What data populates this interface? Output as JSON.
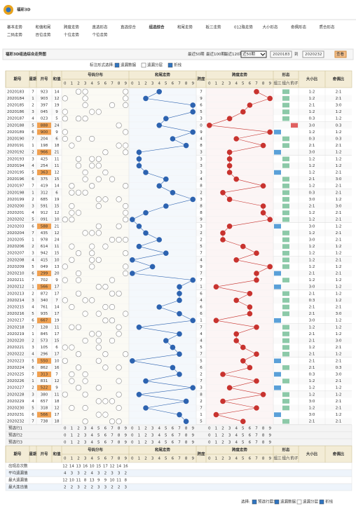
{
  "header": {
    "logo": "福彩3D",
    "nav": [
      [
        "基本走势",
        "和值和尾",
        "跨度走势",
        "直选形态",
        "直选综合",
        "组选综合",
        "和尾走势",
        "板三走势",
        "012路走势",
        "大小形态",
        "奇偶形态",
        "质合形态"
      ],
      [
        "二码走势",
        "百位走势",
        "十位走势",
        "个位走势"
      ]
    ],
    "active_nav": "组选综合"
  },
  "title_bar": {
    "title": "福彩3D组选综合走势图",
    "period_links": [
      "最近50期",
      "最近100期",
      "最近120期"
    ],
    "select": "近50期",
    "from": "2020183",
    "to_label": "到",
    "to": "2020232",
    "button": "查看"
  },
  "controls": {
    "label": "标注形式选择:",
    "options": [
      {
        "label": "遗漏数据",
        "checked": true
      },
      {
        "label": "遗漏分层",
        "checked": false
      },
      {
        "label": "折线",
        "checked": true
      }
    ]
  },
  "table": {
    "headers": {
      "issue": "期号",
      "week": "星期",
      "number": "开号",
      "sum": "和值",
      "dist": "号码分布",
      "tail": "和尾走势",
      "span": "跨度",
      "trend": "跨度走势",
      "shape": "形态",
      "big_small": "大小比",
      "odd_even": "奇偶比"
    },
    "digits": [
      "0",
      "1",
      "2",
      "3",
      "4",
      "5",
      "6",
      "7",
      "8",
      "9"
    ],
    "shape_labels": [
      "组三",
      "组六",
      "豹子"
    ],
    "rows": [
      {
        "issue": "2020183",
        "week": 7,
        "number": "923",
        "sum": 14,
        "span": 7,
        "big_small": "1:2",
        "odd_even": "2:1"
      },
      {
        "issue": "2020184",
        "week": 1,
        "number": "903",
        "sum": 12,
        "span": 9,
        "big_small": "1:2",
        "odd_even": "2:1"
      },
      {
        "issue": "2020185",
        "week": 2,
        "number": "397",
        "sum": 19,
        "span": 6,
        "big_small": "2:1",
        "odd_even": "3:0"
      },
      {
        "issue": "2020186",
        "week": 3,
        "number": "045",
        "sum": 9,
        "span": 5,
        "big_small": "1:2",
        "odd_even": "1:2"
      },
      {
        "issue": "2020187",
        "week": 4,
        "number": "023",
        "sum": 5,
        "span": 3,
        "big_small": "0:3",
        "odd_even": "1:2"
      },
      {
        "issue": "2020188",
        "week": 5,
        "number": "888",
        "sum": 24,
        "span": 0,
        "big_small": "3:0",
        "odd_even": "0:3"
      },
      {
        "issue": "2020189",
        "week": 6,
        "number": "900",
        "sum": 9,
        "span": 9,
        "big_small": "1:2",
        "odd_even": "1:2"
      },
      {
        "issue": "2020190",
        "week": 7,
        "number": "204",
        "sum": 6,
        "span": 4,
        "big_small": "0:3",
        "odd_even": "0:3"
      },
      {
        "issue": "2020191",
        "week": 1,
        "number": "198",
        "sum": 18,
        "span": 8,
        "big_small": "2:1",
        "odd_even": "2:1"
      },
      {
        "issue": "2020192",
        "week": 2,
        "number": "966",
        "sum": 21,
        "span": 3,
        "big_small": "3:0",
        "odd_even": "1:2"
      },
      {
        "issue": "2020193",
        "week": 3,
        "number": "425",
        "sum": 11,
        "span": 3,
        "big_small": "1:2",
        "odd_even": "1:2"
      },
      {
        "issue": "2020194",
        "week": 4,
        "number": "254",
        "sum": 11,
        "span": 3,
        "big_small": "1:2",
        "odd_even": "1:2"
      },
      {
        "issue": "2020195",
        "week": 5,
        "number": "363",
        "sum": 12,
        "span": 3,
        "big_small": "1:2",
        "odd_even": "2:1"
      },
      {
        "issue": "2020196",
        "week": 6,
        "number": "375",
        "sum": 15,
        "span": 4,
        "big_small": "2:1",
        "odd_even": "3:0"
      },
      {
        "issue": "2020197",
        "week": 7,
        "number": "419",
        "sum": 14,
        "span": 8,
        "big_small": "1:2",
        "odd_even": "2:1"
      },
      {
        "issue": "2020198",
        "week": 1,
        "number": "312",
        "sum": 6,
        "span": 2,
        "big_small": "0:3",
        "odd_even": "2:1"
      },
      {
        "issue": "2020199",
        "week": 2,
        "number": "685",
        "sum": 19,
        "span": 3,
        "big_small": "3:0",
        "odd_even": "1:2"
      },
      {
        "issue": "2020200",
        "week": 3,
        "number": "591",
        "sum": 15,
        "span": 8,
        "big_small": "2:1",
        "odd_even": "3:0"
      },
      {
        "issue": "2020201",
        "week": 4,
        "number": "912",
        "sum": 12,
        "span": 8,
        "big_small": "1:2",
        "odd_even": "2:1"
      },
      {
        "issue": "2020202",
        "week": 5,
        "number": "091",
        "sum": 10,
        "span": 9,
        "big_small": "1:2",
        "odd_even": "2:1"
      },
      {
        "issue": "2020203",
        "week": 6,
        "number": "588",
        "sum": 21,
        "span": 3,
        "big_small": "3:0",
        "odd_even": "1:2"
      },
      {
        "issue": "2020204",
        "week": 7,
        "number": "435",
        "sum": 12,
        "span": 2,
        "big_small": "1:2",
        "odd_even": "2:1"
      },
      {
        "issue": "2020205",
        "week": 1,
        "number": "978",
        "sum": 24,
        "span": 2,
        "big_small": "3:0",
        "odd_even": "2:1"
      },
      {
        "issue": "2020206",
        "week": 2,
        "number": "614",
        "sum": 11,
        "span": 5,
        "big_small": "1:2",
        "odd_even": "1:2"
      },
      {
        "issue": "2020207",
        "week": 3,
        "number": "942",
        "sum": 15,
        "span": 7,
        "big_small": "1:2",
        "odd_even": "1:2"
      },
      {
        "issue": "2020208",
        "week": 4,
        "number": "415",
        "sum": 10,
        "span": 4,
        "big_small": "1:2",
        "odd_even": "2:1"
      },
      {
        "issue": "2020209",
        "week": 5,
        "number": "049",
        "sum": 13,
        "span": 9,
        "big_small": "1:2",
        "odd_even": "1:2"
      },
      {
        "issue": "2020210",
        "week": 6,
        "number": "299",
        "sum": 20,
        "span": 7,
        "big_small": "2:1",
        "odd_even": "2:1"
      },
      {
        "issue": "2020211",
        "week": 7,
        "number": "702",
        "sum": 9,
        "span": 7,
        "big_small": "1:2",
        "odd_even": "1:2"
      },
      {
        "issue": "2020212",
        "week": 1,
        "number": "566",
        "sum": 17,
        "span": 1,
        "big_small": "3:0",
        "odd_even": "1:2"
      },
      {
        "issue": "2020213",
        "week": 2,
        "number": "872",
        "sum": 17,
        "span": 6,
        "big_small": "2:1",
        "odd_even": "1:2"
      },
      {
        "issue": "2020214",
        "week": 3,
        "number": "340",
        "sum": 7,
        "span": 4,
        "big_small": "0:3",
        "odd_even": "1:2"
      },
      {
        "issue": "2020215",
        "week": 4,
        "number": "761",
        "sum": 14,
        "span": 6,
        "big_small": "2:1",
        "odd_even": "2:1"
      },
      {
        "issue": "2020216",
        "week": 5,
        "number": "935",
        "sum": 17,
        "span": 6,
        "big_small": "2:1",
        "odd_even": "3:0"
      },
      {
        "issue": "2020217",
        "week": 6,
        "number": "667",
        "sum": 19,
        "span": 1,
        "big_small": "3:0",
        "odd_even": "1:2"
      },
      {
        "issue": "2020218",
        "week": 7,
        "number": "128",
        "sum": 11,
        "span": 7,
        "big_small": "1:2",
        "odd_even": "1:2"
      },
      {
        "issue": "2020219",
        "week": 1,
        "number": "845",
        "sum": 17,
        "span": 4,
        "big_small": "2:1",
        "odd_even": "1:2"
      },
      {
        "issue": "2020220",
        "week": 2,
        "number": "573",
        "sum": 15,
        "span": 4,
        "big_small": "2:1",
        "odd_even": "3:0"
      },
      {
        "issue": "2020221",
        "week": 3,
        "number": "105",
        "sum": 6,
        "span": 5,
        "big_small": "1:2",
        "odd_even": "2:1"
      },
      {
        "issue": "2020222",
        "week": 4,
        "number": "296",
        "sum": 17,
        "span": 7,
        "big_small": "2:1",
        "odd_even": "1:2"
      },
      {
        "issue": "2020223",
        "week": 5,
        "number": "550",
        "sum": 10,
        "span": 5,
        "big_small": "2:1",
        "odd_even": "2:1"
      },
      {
        "issue": "2020224",
        "week": 6,
        "number": "862",
        "sum": 16,
        "span": 6,
        "big_small": "2:1",
        "odd_even": "0:3"
      },
      {
        "issue": "2020225",
        "week": 7,
        "number": "313",
        "sum": 7,
        "span": 2,
        "big_small": "0:3",
        "odd_even": "3:0"
      },
      {
        "issue": "2020226",
        "week": 1,
        "number": "831",
        "sum": 12,
        "span": 7,
        "big_small": "1:2",
        "odd_even": "2:1"
      },
      {
        "issue": "2020227",
        "week": 2,
        "number": "522",
        "sum": 9,
        "span": 3,
        "big_small": "1:2",
        "odd_even": "1:2"
      },
      {
        "issue": "2020228",
        "week": 3,
        "number": "380",
        "sum": 11,
        "span": 8,
        "big_small": "1:2",
        "odd_even": "1:2"
      },
      {
        "issue": "2020229",
        "week": 4,
        "number": "657",
        "sum": 18,
        "span": 2,
        "big_small": "3:0",
        "odd_even": "2:1"
      },
      {
        "issue": "2020230",
        "week": 5,
        "number": "318",
        "sum": 12,
        "span": 7,
        "big_small": "1:2",
        "odd_even": "2:1"
      },
      {
        "issue": "2020231",
        "week": 6,
        "number": "566",
        "sum": 17,
        "span": 1,
        "big_small": "3:0",
        "odd_even": "1:2"
      },
      {
        "issue": "2020232",
        "week": 7,
        "number": "738",
        "sum": 18,
        "span": 5,
        "big_small": "2:1",
        "odd_even": "2:1"
      }
    ],
    "preselect": [
      "预选行1",
      "预选行2",
      "预选行3"
    ],
    "stats": [
      {
        "label": "出现总次数",
        "values": [
          12,
          14,
          13,
          16,
          10,
          15,
          17,
          12,
          14,
          16
        ]
      },
      {
        "label": "平均遗漏值",
        "values": [
          4,
          3,
          3,
          2,
          4,
          3,
          2,
          3,
          3,
          2
        ]
      },
      {
        "label": "最大遗漏值",
        "values": [
          12,
          10,
          11,
          8,
          13,
          9,
          9,
          10,
          11,
          8
        ]
      },
      {
        "label": "最大连出值",
        "values": [
          2,
          2,
          3,
          2,
          2,
          3,
          3,
          2,
          2,
          3
        ]
      }
    ]
  },
  "footer": {
    "label": "选择:",
    "options": [
      {
        "label": "预选行展示",
        "checked": true
      },
      {
        "label": "遗漏数据",
        "checked": true
      },
      {
        "label": "遗漏分层",
        "checked": false
      },
      {
        "label": "折线",
        "checked": true
      }
    ]
  }
}
